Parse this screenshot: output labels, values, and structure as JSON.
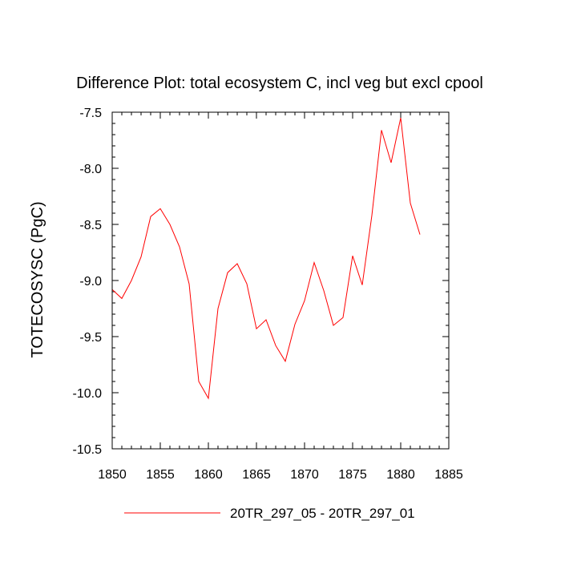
{
  "chart_data": {
    "type": "line",
    "title": "Difference Plot: total ecosystem C, incl veg but excl cpool",
    "xlabel": "",
    "ylabel": "TOTECOSYSC  (PgC)",
    "xlim": [
      1850,
      1885
    ],
    "ylim": [
      -10.5,
      -7.5
    ],
    "xticks": [
      1850,
      1855,
      1860,
      1865,
      1870,
      1875,
      1880,
      1885
    ],
    "yticks": [
      -10.5,
      -10.0,
      -9.5,
      -9.0,
      -8.5,
      -8.0,
      -7.5
    ],
    "xtick_labels": [
      "1850",
      "1855",
      "1860",
      "1865",
      "1870",
      "1875",
      "1880",
      "1885"
    ],
    "ytick_labels": [
      "-10.5",
      "-10.0",
      "-9.5",
      "-9.0",
      "-8.5",
      "-8.0",
      "-7.5"
    ],
    "grid": false,
    "legend_position": "bottom",
    "series": [
      {
        "name": "20TR_297_05 - 20TR_297_01",
        "color": "#ff0000",
        "x": [
          1850,
          1851,
          1852,
          1853,
          1854,
          1855,
          1856,
          1857,
          1858,
          1859,
          1860,
          1861,
          1862,
          1863,
          1864,
          1865,
          1866,
          1867,
          1868,
          1869,
          1870,
          1871,
          1872,
          1873,
          1874,
          1875,
          1876,
          1877,
          1878,
          1879,
          1880,
          1881,
          1882
        ],
        "values": [
          -9.08,
          -9.16,
          -9.0,
          -8.79,
          -8.43,
          -8.36,
          -8.5,
          -8.7,
          -9.03,
          -9.9,
          -10.05,
          -9.25,
          -8.93,
          -8.85,
          -9.03,
          -9.43,
          -9.35,
          -9.58,
          -9.72,
          -9.39,
          -9.18,
          -8.84,
          -9.09,
          -9.4,
          -9.33,
          -8.78,
          -9.04,
          -8.42,
          -7.66,
          -7.95,
          -7.55,
          -8.31,
          -8.59
        ]
      }
    ]
  }
}
